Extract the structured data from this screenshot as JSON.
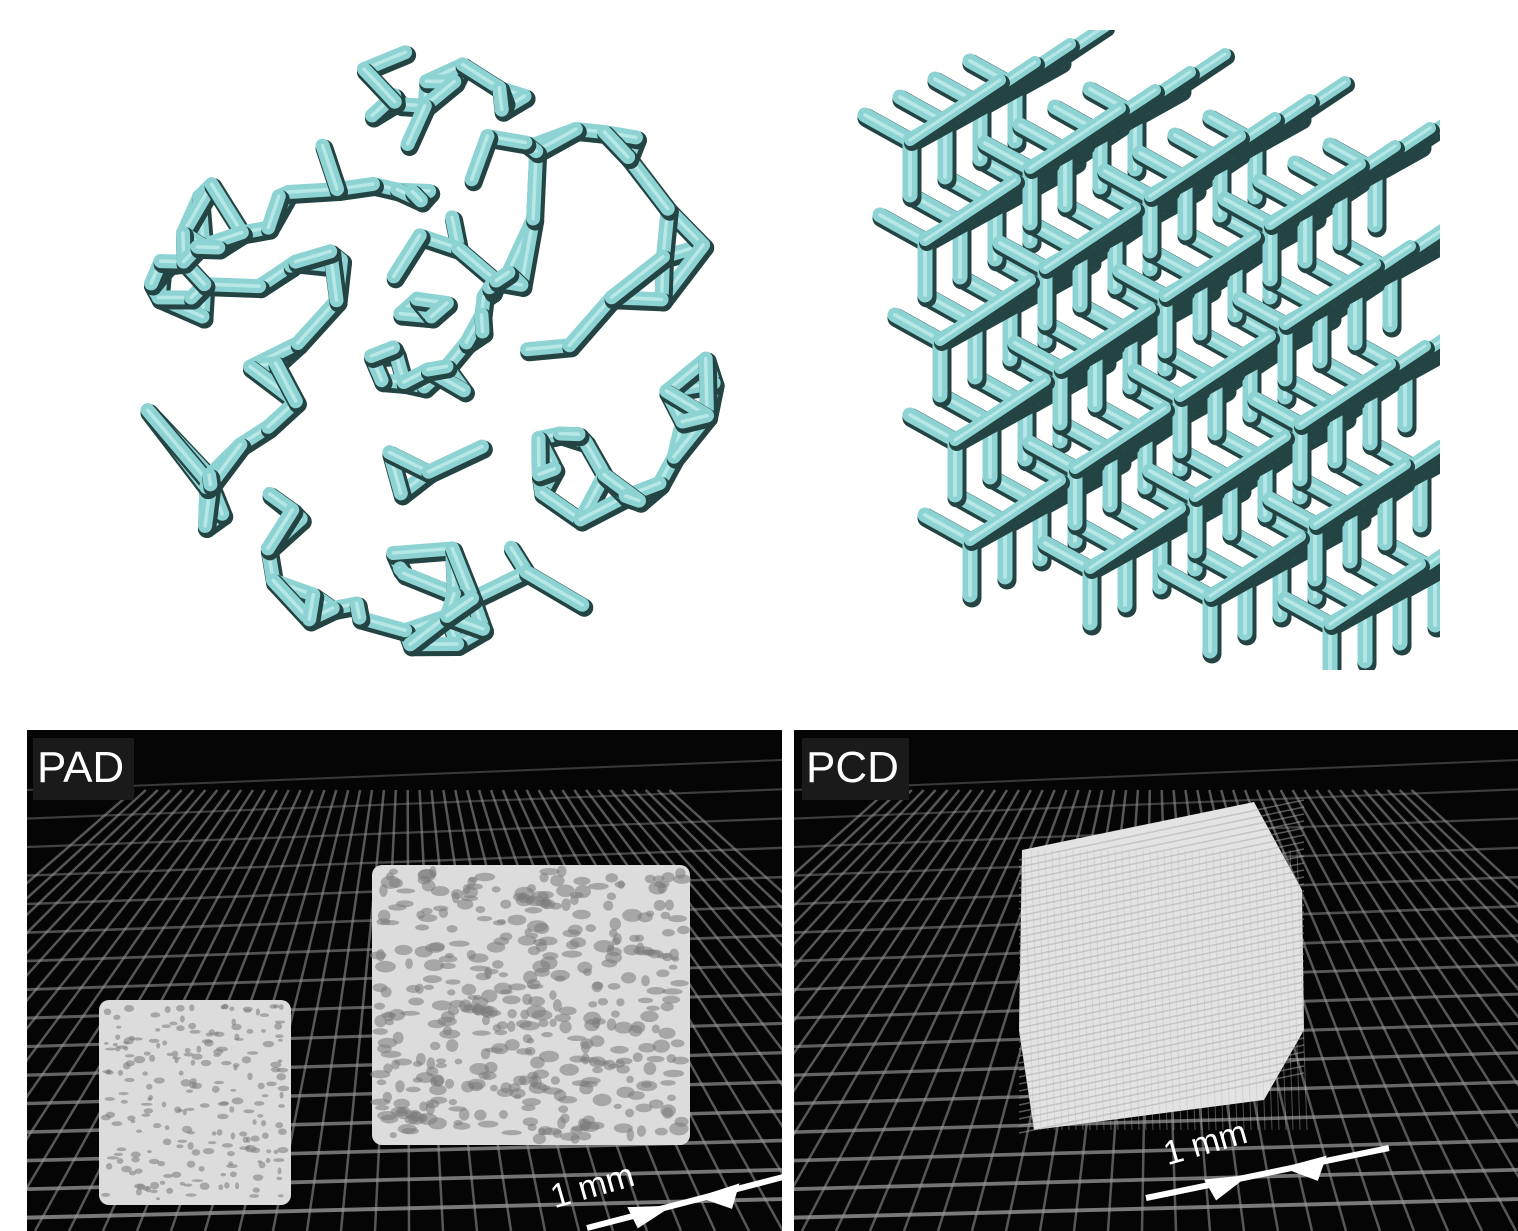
{
  "panels": {
    "bottom_left": {
      "label": "PAD",
      "scale_bar": "1 mm"
    },
    "bottom_right": {
      "label": "PCD",
      "scale_bar": "1 mm"
    }
  },
  "colors": {
    "strut": "#8ED3D3",
    "strut_shadow": "#244444",
    "photo_bg": "#050505",
    "foam": "#dcdcdc",
    "grid": "#9a9a9a"
  }
}
